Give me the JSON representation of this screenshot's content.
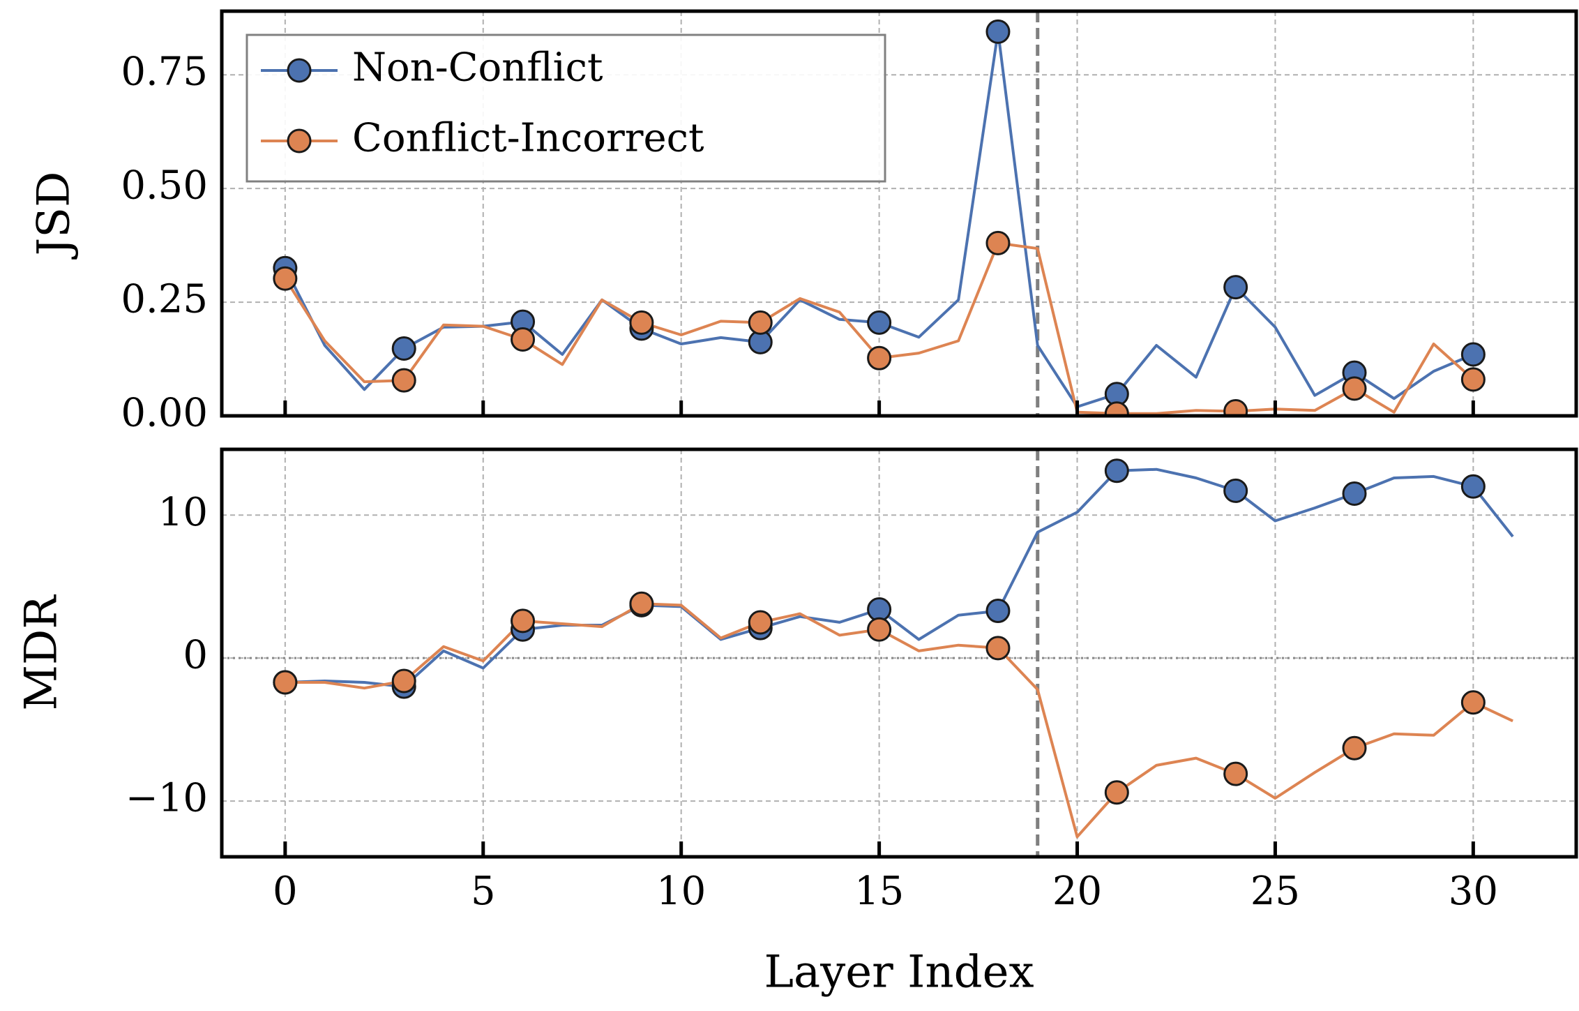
{
  "chart_data": [
    {
      "type": "line",
      "ylabel": "JSD",
      "xlim": [
        -1.6,
        32.6
      ],
      "ylim": [
        0,
        0.89
      ],
      "yticks": [
        0.0,
        0.25,
        0.5,
        0.75
      ],
      "ytick_labels": [
        "0.00",
        "0.25",
        "0.50",
        "0.75"
      ],
      "grid": true,
      "legend_position": "top-left",
      "vline_x": 19,
      "marker_every": 3,
      "series": [
        {
          "name": "Non-Conflict",
          "color": "#4c72b0",
          "x": [
            0,
            1,
            2,
            3,
            4,
            5,
            6,
            7,
            8,
            9,
            10,
            11,
            12,
            13,
            14,
            15,
            16,
            17,
            18,
            19,
            20,
            21,
            22,
            23,
            24,
            25,
            26,
            27,
            28,
            29,
            30
          ],
          "values": [
            0.325,
            0.155,
            0.058,
            0.148,
            0.195,
            0.197,
            0.207,
            0.135,
            0.255,
            0.192,
            0.158,
            0.172,
            0.162,
            0.255,
            0.212,
            0.205,
            0.173,
            0.255,
            0.845,
            0.155,
            0.02,
            0.048,
            0.155,
            0.085,
            0.283,
            0.195,
            0.045,
            0.095,
            0.038,
            0.098,
            0.135
          ]
        },
        {
          "name": "Conflict-Incorrect",
          "color": "#dd8452",
          "x": [
            0,
            1,
            2,
            3,
            4,
            5,
            6,
            7,
            8,
            9,
            10,
            11,
            12,
            13,
            14,
            15,
            16,
            17,
            18,
            19,
            20,
            21,
            22,
            23,
            24,
            25,
            26,
            27,
            28,
            29,
            30
          ],
          "values": [
            0.302,
            0.165,
            0.075,
            0.078,
            0.2,
            0.197,
            0.168,
            0.113,
            0.255,
            0.205,
            0.178,
            0.208,
            0.205,
            0.258,
            0.228,
            0.127,
            0.138,
            0.165,
            0.38,
            0.368,
            0.008,
            0.005,
            0.005,
            0.012,
            0.01,
            0.015,
            0.012,
            0.06,
            0.008,
            0.158,
            0.08
          ]
        }
      ]
    },
    {
      "type": "line",
      "ylabel": "MDR",
      "xlabel": "Layer Index",
      "xlim": [
        -1.6,
        32.6
      ],
      "ylim": [
        -13.9,
        14.6
      ],
      "xticks": [
        0,
        5,
        10,
        15,
        20,
        25,
        30
      ],
      "xtick_labels": [
        "0",
        "5",
        "10",
        "15",
        "20",
        "25",
        "30"
      ],
      "yticks": [
        -10,
        0,
        10
      ],
      "ytick_labels": [
        "−10",
        "0",
        "10"
      ],
      "grid": true,
      "hline_y": 0,
      "vline_x": 19,
      "marker_every": 3,
      "series": [
        {
          "name": "Non-Conflict",
          "color": "#4c72b0",
          "x": [
            0,
            1,
            2,
            3,
            4,
            5,
            6,
            7,
            8,
            9,
            10,
            11,
            12,
            13,
            14,
            15,
            16,
            17,
            18,
            19,
            20,
            21,
            22,
            23,
            24,
            25,
            26,
            27,
            28,
            29,
            30,
            31
          ],
          "values": [
            -1.7,
            -1.6,
            -1.7,
            -2.0,
            0.5,
            -0.7,
            2.0,
            2.3,
            2.3,
            3.7,
            3.6,
            1.3,
            2.1,
            2.9,
            2.5,
            3.4,
            1.3,
            3.0,
            3.3,
            8.8,
            10.2,
            13.1,
            13.2,
            12.6,
            11.7,
            9.6,
            10.5,
            11.5,
            12.6,
            12.7,
            12.0,
            8.5
          ]
        },
        {
          "name": "Conflict-Incorrect",
          "color": "#dd8452",
          "x": [
            0,
            1,
            2,
            3,
            4,
            5,
            6,
            7,
            8,
            9,
            10,
            11,
            12,
            13,
            14,
            15,
            16,
            17,
            18,
            19,
            20,
            21,
            22,
            23,
            24,
            25,
            26,
            27,
            28,
            29,
            30,
            31
          ],
          "values": [
            -1.7,
            -1.7,
            -2.1,
            -1.6,
            0.8,
            -0.2,
            2.6,
            2.4,
            2.2,
            3.8,
            3.7,
            1.4,
            2.5,
            3.1,
            1.6,
            2.0,
            0.5,
            0.9,
            0.7,
            -2.2,
            -12.5,
            -9.4,
            -7.5,
            -7.0,
            -8.1,
            -9.8,
            -8.0,
            -6.3,
            -5.3,
            -5.4,
            -3.1,
            -4.4
          ]
        }
      ]
    }
  ],
  "legend": [
    {
      "label": "Non-Conflict",
      "color": "#4c72b0"
    },
    {
      "label": "Conflict-Incorrect",
      "color": "#dd8452"
    }
  ]
}
